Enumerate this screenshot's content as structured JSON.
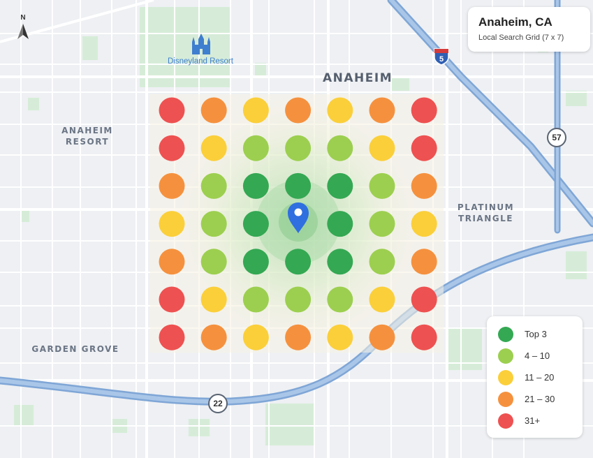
{
  "header": {
    "title": "Anaheim, CA",
    "subtitle": "Local Search Grid (7 x 7)"
  },
  "compass": {
    "label": "N",
    "icon": "north-arrow-icon"
  },
  "labels": {
    "city": "ANAHEIM",
    "anaheim_resort": [
      "ANAHEIM",
      "RESORT"
    ],
    "platinum_triangle": [
      "PLATINUM",
      "TRIANGLE"
    ],
    "garden_grove": "GARDEN GROVE",
    "poi": "Disneyland Resort"
  },
  "shields": {
    "i5": "5",
    "sr57": "57",
    "sr22": "22"
  },
  "rank_colors": {
    "top3": "#34a853",
    "r4_10": "#9ccf4f",
    "r11_20": "#fbcf3a",
    "r21_30": "#f5913e",
    "r31": "#ee5151"
  },
  "grid": {
    "size": "7 x 7",
    "cells": [
      [
        "r31",
        "r21_30",
        "r11_20",
        "r21_30",
        "r11_20",
        "r21_30",
        "r31"
      ],
      [
        "r31",
        "r11_20",
        "r4_10",
        "r4_10",
        "r4_10",
        "r11_20",
        "r31"
      ],
      [
        "r21_30",
        "r4_10",
        "top3",
        "top3",
        "top3",
        "r4_10",
        "r21_30"
      ],
      [
        "r11_20",
        "r4_10",
        "top3",
        "center",
        "top3",
        "r4_10",
        "r11_20"
      ],
      [
        "r21_30",
        "r4_10",
        "top3",
        "top3",
        "top3",
        "r4_10",
        "r21_30"
      ],
      [
        "r31",
        "r11_20",
        "r4_10",
        "r4_10",
        "r4_10",
        "r11_20",
        "r31"
      ],
      [
        "r31",
        "r21_30",
        "r11_20",
        "r21_30",
        "r11_20",
        "r21_30",
        "r31"
      ]
    ]
  },
  "legend": {
    "items": [
      {
        "label": "Top 3",
        "rank": "top3"
      },
      {
        "label": "4 – 10",
        "rank": "r4_10"
      },
      {
        "label": "11 – 20",
        "rank": "r11_20"
      },
      {
        "label": "21 – 30",
        "rank": "r21_30"
      },
      {
        "label": "31+",
        "rank": "r31"
      }
    ]
  }
}
